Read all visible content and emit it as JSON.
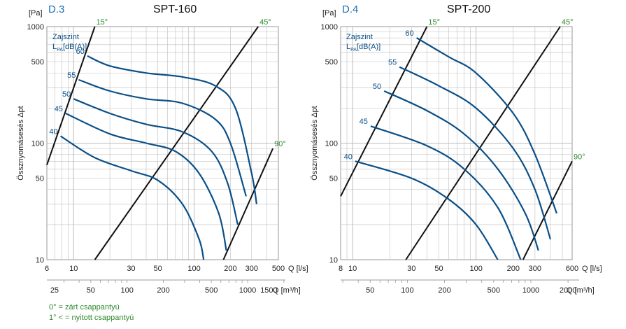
{
  "colors": {
    "curve": "#0a4f87",
    "guide": "#111111",
    "angle": "#2e8b2e",
    "grid": "#bdbdbd",
    "id": "#1f6fae"
  },
  "y_axis_label": "Össznyomásesés Δpt",
  "y_unit": "[Pa]",
  "zone_label": "Zajszint",
  "lpa_label_main": "L",
  "lpa_label_sub": "PA",
  "lpa_label_unit": "[dB(A)]",
  "legend": {
    "closed": "0° = zárt csappantyú",
    "open": "1° < = nyitott csappantyú"
  },
  "chart_data": [
    {
      "type": "line",
      "id": "D.3",
      "title": "SPT-160",
      "x_scale": "log",
      "y_scale": "log",
      "xlim": [
        6,
        500
      ],
      "ylim": [
        10,
        1000
      ],
      "grid": true,
      "x_ticks": [
        6,
        10,
        30,
        50,
        100,
        200,
        300,
        500
      ],
      "x_tick_labels": [
        "6",
        "10",
        "30",
        "50",
        "100",
        "200",
        "300",
        "500"
      ],
      "xlabel": "Q [l/s]",
      "x2_ticks": [
        25,
        50,
        100,
        200,
        500,
        1000,
        1500
      ],
      "x2_tick_labels": [
        "25",
        "50",
        "100",
        "200",
        "500",
        "1000",
        "1500"
      ],
      "x2label": "Q [m³/h]",
      "y_ticks": [
        10,
        50,
        100,
        500,
        1000
      ],
      "y_tick_labels": [
        "10",
        "50",
        "100",
        "500",
        "1000"
      ],
      "noise_series": [
        {
          "name": "60",
          "x": [
            13,
            20,
            40,
            80,
            150,
            220,
            300,
            330
          ],
          "y": [
            560,
            460,
            400,
            370,
            310,
            200,
            55,
            30
          ]
        },
        {
          "name": "55",
          "x": [
            11,
            20,
            40,
            80,
            150,
            200,
            270
          ],
          "y": [
            350,
            280,
            240,
            220,
            160,
            100,
            35
          ]
        },
        {
          "name": "50",
          "x": [
            10,
            20,
            40,
            80,
            140,
            190,
            230
          ],
          "y": [
            240,
            180,
            145,
            125,
            85,
            45,
            20
          ]
        },
        {
          "name": "45",
          "x": [
            8.6,
            20,
            40,
            70,
            110,
            160,
            185
          ],
          "y": [
            180,
            120,
            100,
            85,
            55,
            25,
            12
          ]
        },
        {
          "name": "40",
          "x": [
            7.8,
            15,
            30,
            50,
            80,
            110,
            120
          ],
          "y": [
            115,
            75,
            58,
            48,
            30,
            15,
            10
          ]
        }
      ],
      "damper_lines": [
        {
          "name": "15°",
          "x": [
            6,
            15
          ],
          "y": [
            65,
            1000
          ]
        },
        {
          "name": "45°",
          "x": [
            15,
            340
          ],
          "y": [
            10,
            1000
          ]
        },
        {
          "name": "90°",
          "x": [
            175,
            450
          ],
          "y": [
            10,
            90
          ]
        }
      ]
    },
    {
      "type": "line",
      "id": "D.4",
      "title": "SPT-200",
      "x_scale": "log",
      "y_scale": "log",
      "xlim": [
        8,
        600
      ],
      "ylim": [
        10,
        1000
      ],
      "grid": true,
      "x_ticks": [
        8,
        10,
        30,
        50,
        100,
        200,
        300,
        600
      ],
      "x_tick_labels": [
        "8",
        "10",
        "30",
        "50",
        "100",
        "200",
        "300",
        "600"
      ],
      "xlabel": "Q [l/s]",
      "x2_ticks": [
        50,
        100,
        200,
        500,
        1000,
        2000
      ],
      "x2_tick_labels": [
        "50",
        "100",
        "200",
        "500",
        "1000",
        "2000"
      ],
      "x2label": "Q [m³/h]",
      "y_ticks": [
        10,
        50,
        100,
        500,
        1000
      ],
      "y_tick_labels": [
        "10",
        "50",
        "100",
        "500",
        "1000"
      ],
      "noise_series": [
        {
          "name": "60",
          "x": [
            33,
            60,
            100,
            200,
            300,
            450
          ],
          "y": [
            800,
            550,
            400,
            180,
            80,
            25
          ]
        },
        {
          "name": "55",
          "x": [
            24,
            50,
            100,
            200,
            300,
            400
          ],
          "y": [
            450,
            310,
            200,
            90,
            40,
            15
          ]
        },
        {
          "name": "50",
          "x": [
            18,
            40,
            80,
            150,
            250,
            320
          ],
          "y": [
            280,
            190,
            120,
            60,
            25,
            12
          ]
        },
        {
          "name": "45",
          "x": [
            14,
            40,
            80,
            150,
            230
          ],
          "y": [
            140,
            95,
            60,
            28,
            10
          ]
        },
        {
          "name": "40",
          "x": [
            10.5,
            30,
            60,
            100,
            150
          ],
          "y": [
            70,
            50,
            33,
            20,
            10
          ]
        }
      ],
      "damper_lines": [
        {
          "name": "15°",
          "x": [
            8,
            40
          ],
          "y": [
            35,
            1000
          ]
        },
        {
          "name": "45°",
          "x": [
            27,
            480
          ],
          "y": [
            10,
            1000
          ]
        },
        {
          "name": "90°",
          "x": [
            240,
            600
          ],
          "y": [
            10,
            70
          ]
        }
      ]
    }
  ]
}
